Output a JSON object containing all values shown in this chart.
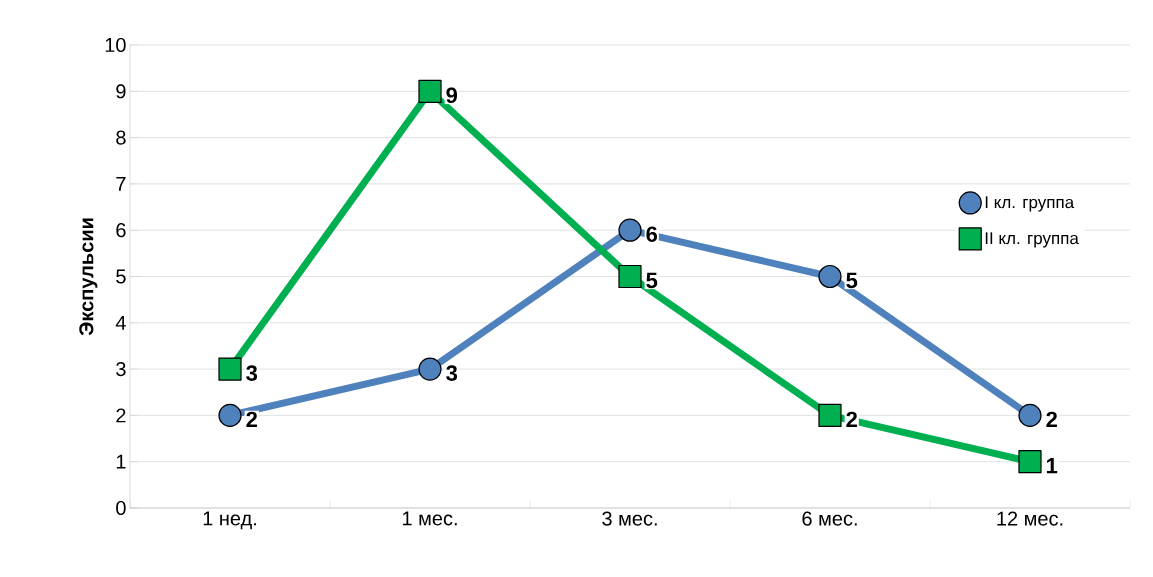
{
  "chart_data": {
    "type": "line",
    "ylabel": "Экспульсии",
    "categories": [
      "1 нед.",
      "1 мес.",
      "3 мес.",
      "6 мес.",
      "12 мес."
    ],
    "series": [
      {
        "name": "I кл. группа",
        "color": "#4f81bd",
        "marker": "circle",
        "values": [
          2,
          3,
          6,
          5,
          2
        ]
      },
      {
        "name": "II кл. группа",
        "color": "#00b050",
        "marker": "square",
        "values": [
          3,
          9,
          5,
          2,
          1
        ]
      }
    ],
    "ylim": [
      0,
      10
    ],
    "yticks": [
      0,
      1,
      2,
      3,
      4,
      5,
      6,
      7,
      8,
      9,
      10
    ],
    "grid": "y",
    "legend": "right",
    "data_labels": true,
    "line_style": "solid"
  }
}
